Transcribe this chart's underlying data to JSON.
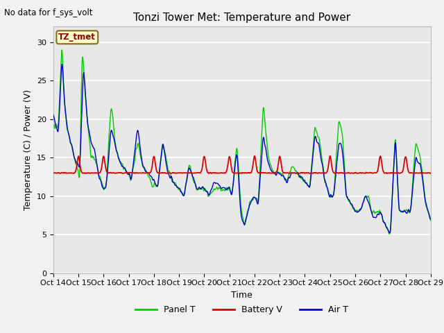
{
  "title": "Tonzi Tower Met: Temperature and Power",
  "no_data_text": "No data for f_sys_volt",
  "annotation_text": "TZ_tmet",
  "ylabel": "Temperature (C) / Power (V)",
  "xlabel": "Time",
  "xlim": [
    0,
    360
  ],
  "ylim": [
    0,
    32
  ],
  "yticks": [
    0,
    5,
    10,
    15,
    20,
    25,
    30
  ],
  "xtick_labels": [
    "Oct 14",
    "Oct 15",
    "Oct 16",
    "Oct 17",
    "Oct 18",
    "Oct 19",
    "Oct 20",
    "Oct 21",
    "Oct 22",
    "Oct 23",
    "Oct 24",
    "Oct 25",
    "Oct 26",
    "Oct 27",
    "Oct 28",
    "Oct 29"
  ],
  "xtick_positions": [
    0,
    24,
    48,
    72,
    96,
    120,
    144,
    168,
    192,
    216,
    240,
    264,
    288,
    312,
    336,
    360
  ],
  "panel_color": "#00cc00",
  "battery_color": "#dd0000",
  "air_color": "#0000cc",
  "background_color": "#e8e8e8",
  "figure_background": "#f2f2f2",
  "legend_labels": [
    "Panel T",
    "Battery V",
    "Air T"
  ],
  "grid_color": "#ffffff",
  "title_fontsize": 11,
  "label_fontsize": 9,
  "tick_fontsize": 8
}
